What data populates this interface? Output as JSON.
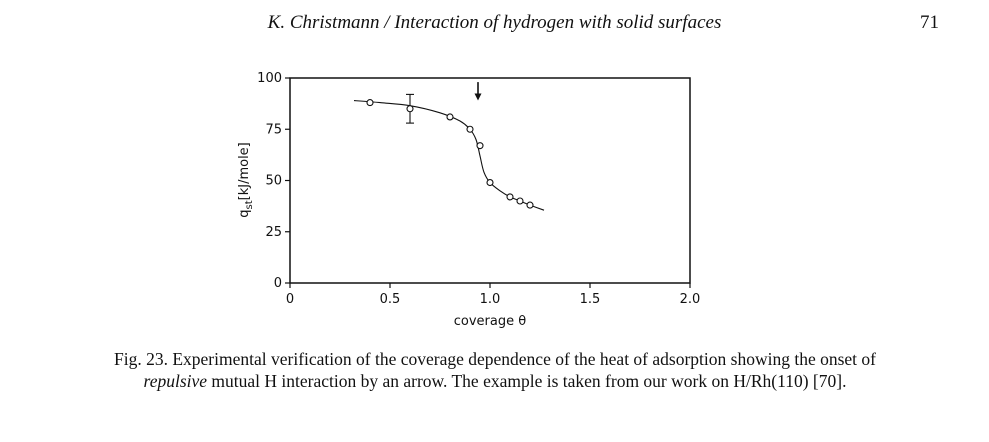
{
  "page": {
    "running_title": "K. Christmann / Interaction of hydrogen with solid surfaces",
    "page_number": "71"
  },
  "caption": {
    "part1": "Fig. 23. Experimental verification of the coverage dependence of the heat of adsorption showing the onset of ",
    "emphasis": "repulsive",
    "part2": " mutual H interaction by an arrow. The example is taken from our work on H/Rh(110) [70]."
  },
  "chart_data": {
    "type": "scatter",
    "xlabel": "coverage θ",
    "ylabel_main": "q",
    "ylabel_sub": "st",
    "ylabel_rest": "[kJ/mole]",
    "xlim": [
      0,
      2.0
    ],
    "ylim": [
      0,
      100
    ],
    "x_ticks": [
      0,
      0.5,
      1.0,
      1.5,
      2.0
    ],
    "x_tick_labels": [
      "0",
      "0.5",
      "1.0",
      "1.5",
      "2.0"
    ],
    "y_ticks": [
      0,
      25,
      50,
      75,
      100
    ],
    "y_tick_labels": [
      "0",
      "25",
      "50",
      "75",
      "100"
    ],
    "grid": false,
    "series": [
      {
        "points": [
          {
            "x": 0.4,
            "y": 88
          },
          {
            "x": 0.6,
            "y": 85,
            "error": 7
          },
          {
            "x": 0.8,
            "y": 81
          },
          {
            "x": 0.9,
            "y": 75
          },
          {
            "x": 0.95,
            "y": 67
          },
          {
            "x": 1.0,
            "y": 49
          },
          {
            "x": 1.1,
            "y": 42
          },
          {
            "x": 1.15,
            "y": 40
          },
          {
            "x": 1.2,
            "y": 38
          }
        ],
        "curve": [
          [
            0.32,
            89
          ],
          [
            0.45,
            88
          ],
          [
            0.6,
            86.5
          ],
          [
            0.75,
            83
          ],
          [
            0.85,
            79
          ],
          [
            0.9,
            75
          ],
          [
            0.93,
            70
          ],
          [
            0.95,
            62
          ],
          [
            0.97,
            54
          ],
          [
            1.0,
            49
          ],
          [
            1.05,
            45
          ],
          [
            1.1,
            42
          ],
          [
            1.15,
            40
          ],
          [
            1.2,
            38
          ],
          [
            1.27,
            35.5
          ]
        ]
      }
    ],
    "annotation": {
      "type": "arrow",
      "x": 0.94,
      "y_from": 98,
      "y_to": 89
    }
  }
}
